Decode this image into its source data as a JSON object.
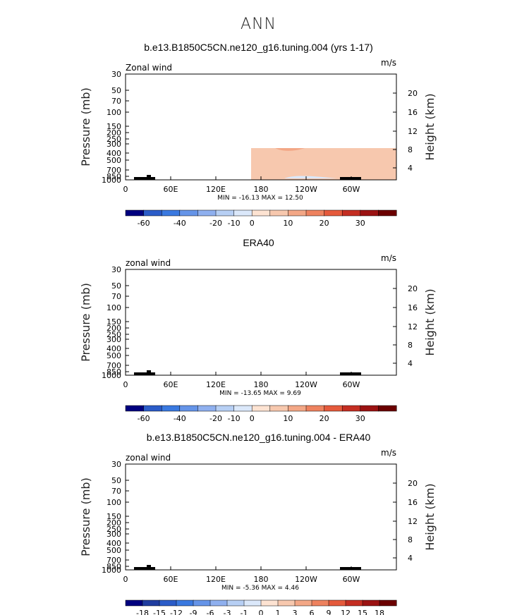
{
  "main_title": "ANN",
  "colors": [
    "#00007f",
    "#1f3c9f",
    "#2b5cc8",
    "#3a79e0",
    "#6594e8",
    "#8fb0ef",
    "#b7cff4",
    "#dbe8fa",
    "#fde3d2",
    "#f7c8ae",
    "#f3a786",
    "#ee825f",
    "#e55a3c",
    "#c42e22",
    "#9b1212",
    "#6b0000"
  ],
  "chart_data": [
    {
      "type": "heatmap",
      "title": "b.e13.B1850C5CN.ne120_g16.tuning.004 (yrs 1-17)",
      "field_label": "Zonal wind",
      "units": "m/s",
      "ylabel_left": "Pressure (mb)",
      "ylabel_right": "Height (km)",
      "pressure_ticks": [
        "30",
        "50",
        "70",
        "100",
        "150",
        "200",
        "250",
        "300",
        "400",
        "500",
        "700",
        "850",
        "1000"
      ],
      "height_ticks": [
        "20",
        "16",
        "12",
        "8",
        "4"
      ],
      "lon_ticks": [
        "0",
        "60E",
        "120E",
        "180",
        "120W",
        "60W"
      ],
      "stats": "MIN = -16.13   MAX =  12.50",
      "colorbar_labels": [
        "-60",
        "-40",
        "-20",
        "-10",
        "0",
        "10",
        "20",
        "30"
      ]
    },
    {
      "type": "heatmap",
      "title": "ERA40",
      "field_label": "zonal wind",
      "units": "m/s",
      "ylabel_left": "Pressure (mb)",
      "ylabel_right": "Height (km)",
      "pressure_ticks": [
        "30",
        "50",
        "70",
        "100",
        "150",
        "200",
        "250",
        "300",
        "400",
        "500",
        "700",
        "850",
        "1000"
      ],
      "height_ticks": [
        "20",
        "16",
        "12",
        "8",
        "4"
      ],
      "lon_ticks": [
        "0",
        "60E",
        "120E",
        "180",
        "120W",
        "60W"
      ],
      "stats": "MIN = -13.65   MAX =   9.69",
      "colorbar_labels": [
        "-60",
        "-40",
        "-20",
        "-10",
        "0",
        "10",
        "20",
        "30"
      ]
    },
    {
      "type": "heatmap",
      "title": "b.e13.B1850C5CN.ne120_g16.tuning.004 - ERA40",
      "field_label": "zonal wind",
      "units": "m/s",
      "ylabel_left": "Pressure (mb)",
      "ylabel_right": "Height (km)",
      "pressure_ticks": [
        "30",
        "50",
        "70",
        "100",
        "150",
        "200",
        "250",
        "300",
        "400",
        "500",
        "700",
        "850",
        "1000"
      ],
      "height_ticks": [
        "20",
        "16",
        "12",
        "8",
        "4"
      ],
      "lon_ticks": [
        "0",
        "60E",
        "120E",
        "180",
        "120W",
        "60W"
      ],
      "stats": "MIN =  -5.36   MAX =   4.46",
      "colorbar_labels": [
        "-18",
        "-15",
        "-12",
        "-9",
        "-6",
        "-3",
        "-1",
        "0",
        "1",
        "3",
        "6",
        "9",
        "12",
        "15",
        "18"
      ]
    }
  ]
}
